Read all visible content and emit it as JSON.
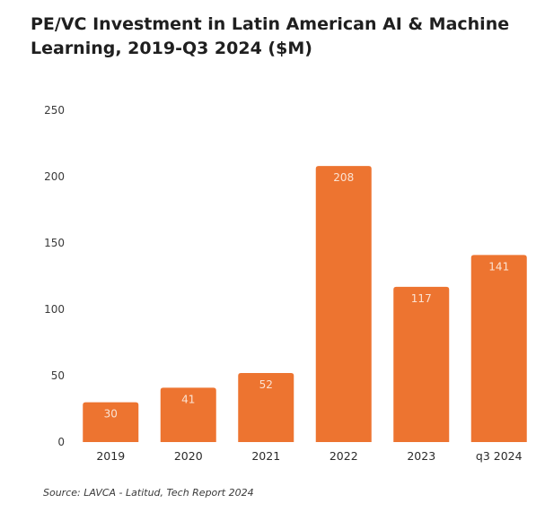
{
  "title": "PE/VC Investment in Latin American AI & Machine Learning, 2019-Q3 2024 ($M)",
  "source": "Source: LAVCA - Latitud, Tech Report 2024",
  "colors": {
    "bar": "#ED7430",
    "label": "#FBE3D3"
  },
  "chart_data": {
    "type": "bar",
    "title": "PE/VC Investment in Latin American AI & Machine Learning, 2019-Q3 2024 ($M)",
    "categories": [
      "2019",
      "2020",
      "2021",
      "2022",
      "2023",
      "q3 2024"
    ],
    "values": [
      30,
      41,
      52,
      208,
      117,
      141
    ],
    "data_labels": [
      "30",
      "41",
      "52",
      "208",
      "117",
      "141"
    ],
    "yticks": [
      "0",
      "50",
      "100",
      "150",
      "200",
      "250"
    ],
    "ylim": [
      0,
      250
    ],
    "xlabel": "",
    "ylabel": "",
    "grid": false,
    "legend": "none"
  }
}
